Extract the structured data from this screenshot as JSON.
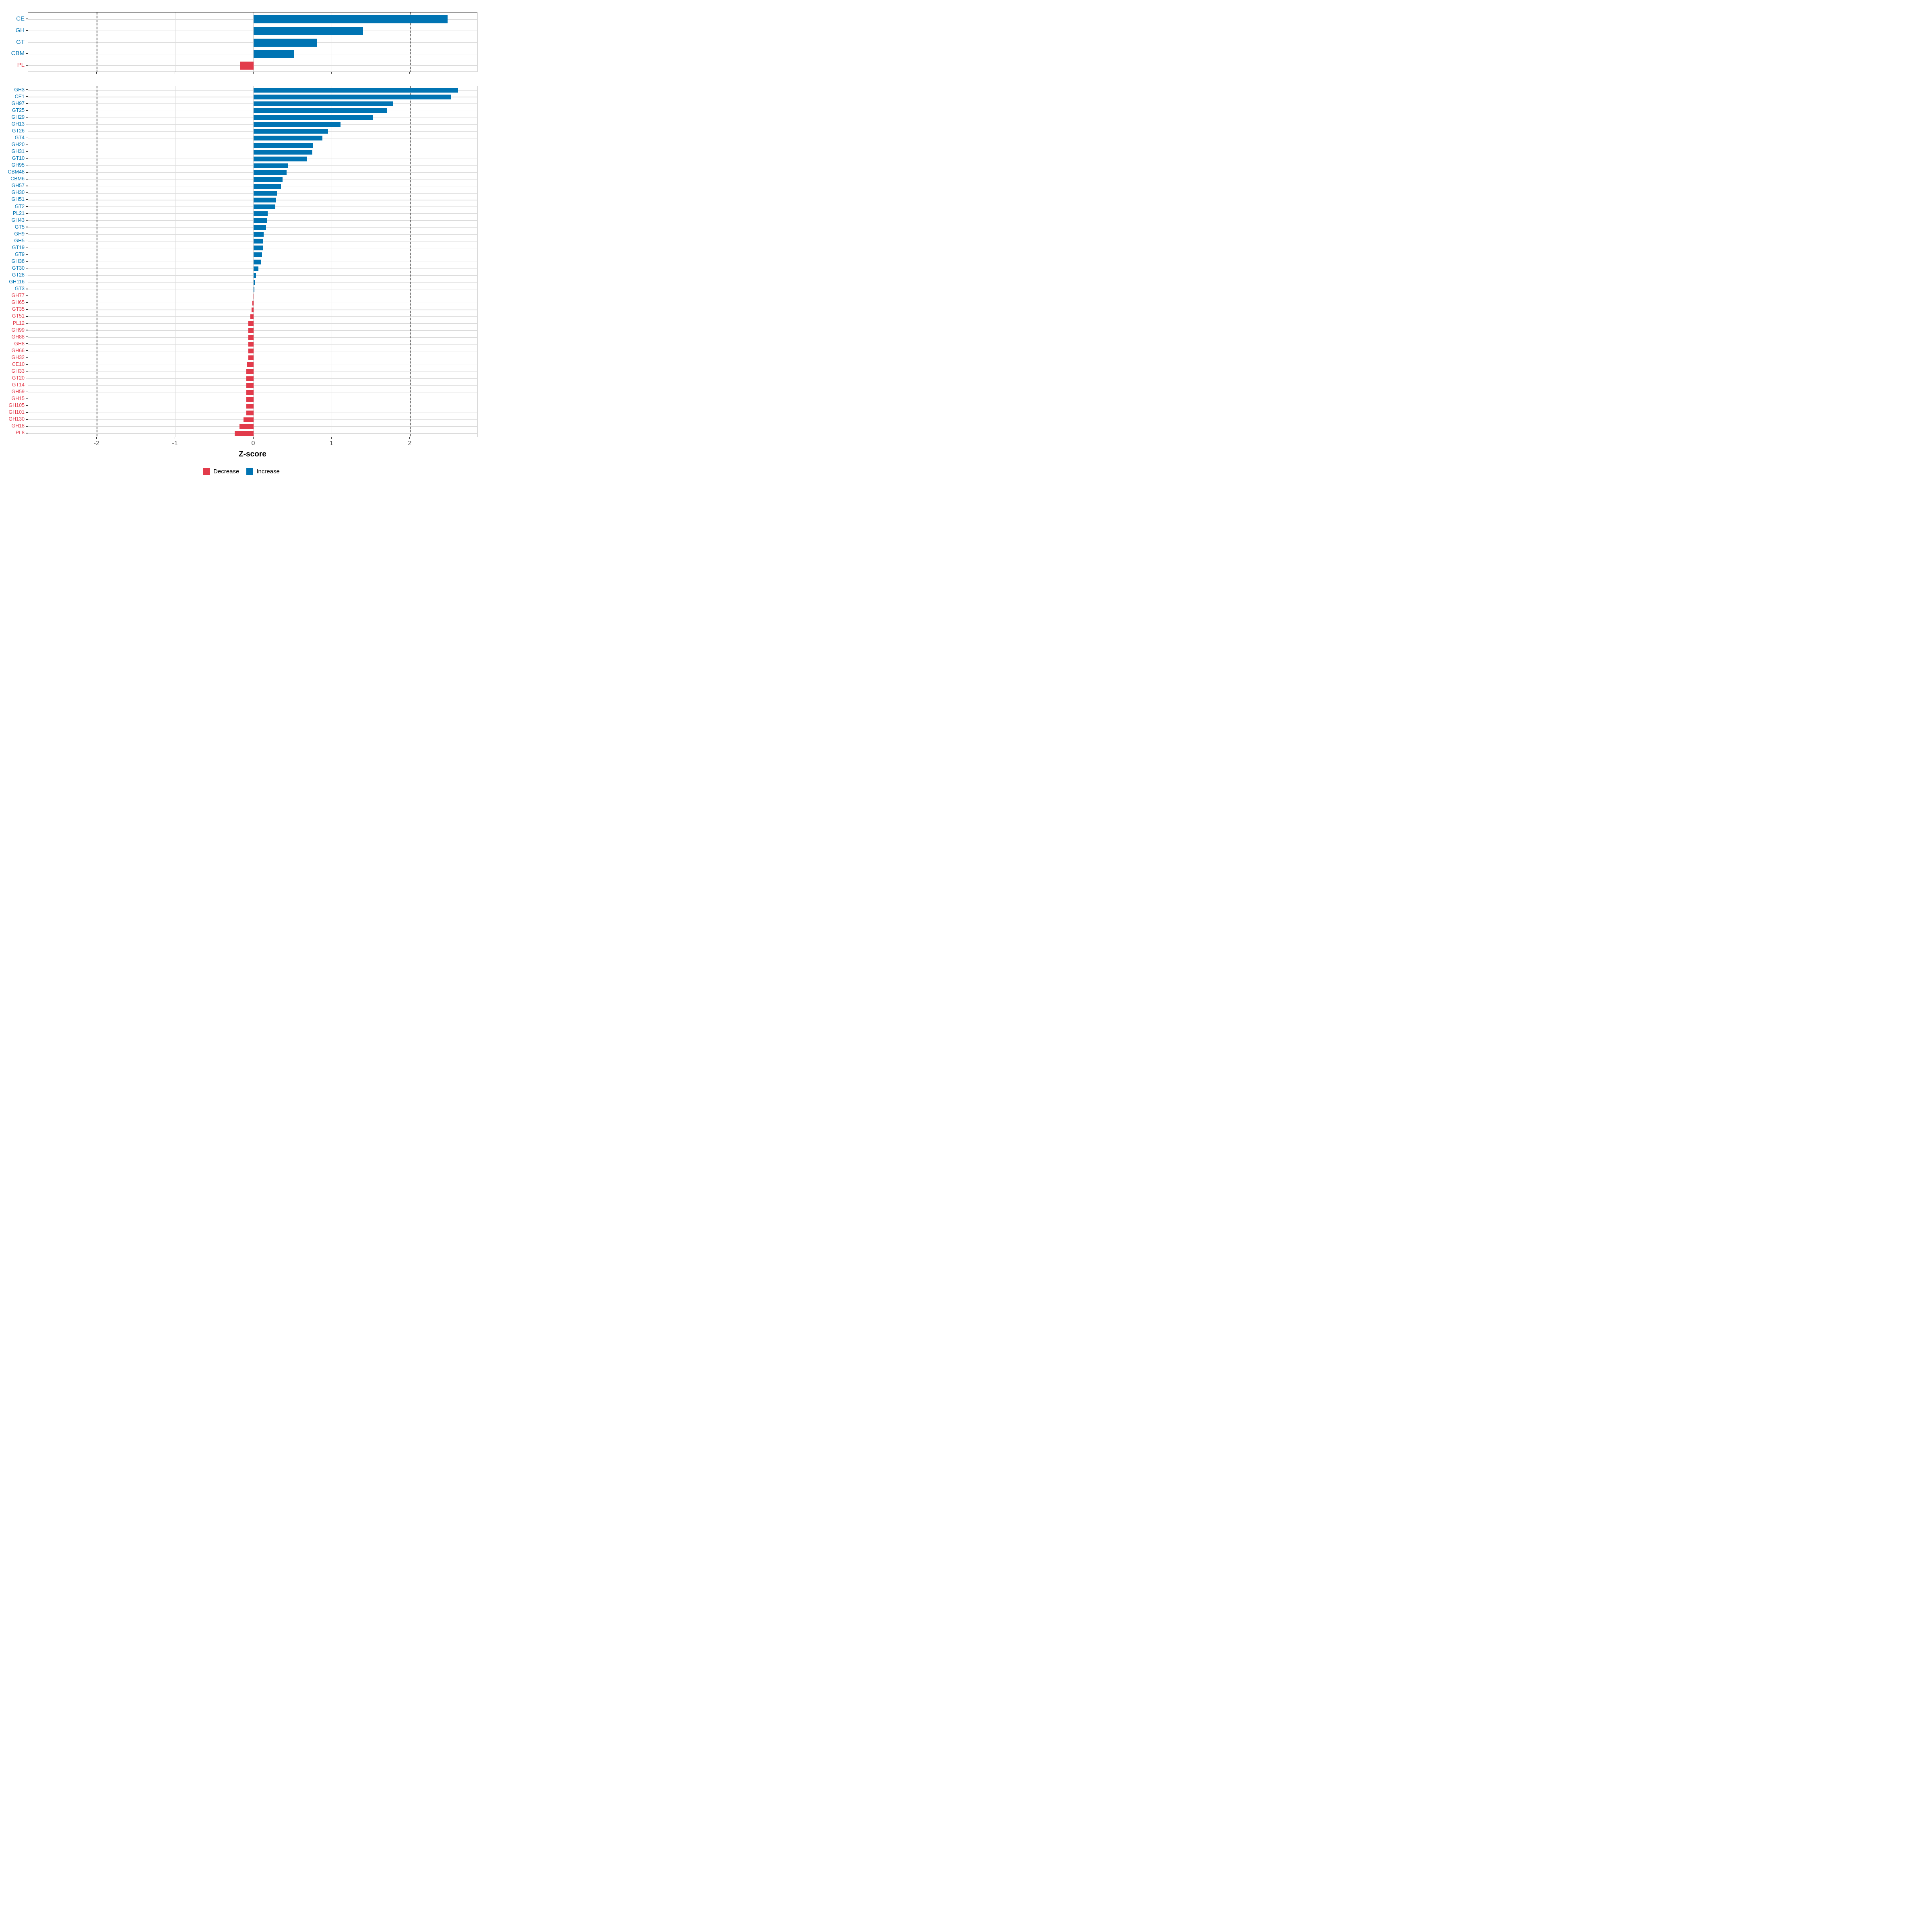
{
  "axis": {
    "xlabel": "Z-score",
    "ticks": [
      "-2",
      "-1",
      "0",
      "1",
      "2"
    ],
    "tick_values": [
      -2,
      -1,
      0,
      1,
      2
    ],
    "dashed_at": [
      -2,
      2
    ]
  },
  "legend": {
    "decrease_label": "Decrease",
    "increase_label": "Increase"
  },
  "colors": {
    "increase": "#0074B3",
    "decrease": "#E23B4B",
    "grid": "#dcdcdc",
    "dashed": "#343434",
    "panel_border": "#1f1f1f",
    "tick_text": "#4d4d4d"
  },
  "chart_data": [
    {
      "type": "bar",
      "orientation": "horizontal",
      "panel": "top",
      "title": "",
      "xlabel": "Z-score",
      "xlim": [
        -2.88,
        2.87
      ],
      "grid": true,
      "categories": [
        "CE",
        "GH",
        "GT",
        "CBM",
        "PL"
      ],
      "values": [
        2.48,
        1.4,
        0.81,
        0.52,
        -0.17
      ],
      "directions": [
        "Increase",
        "Increase",
        "Increase",
        "Increase",
        "Decrease"
      ]
    },
    {
      "type": "bar",
      "orientation": "horizontal",
      "panel": "bottom",
      "title": "",
      "xlabel": "Z-score",
      "xlim": [
        -2.88,
        2.87
      ],
      "grid": true,
      "categories": [
        "GH3",
        "CE1",
        "GH97",
        "GT25",
        "GH29",
        "GH13",
        "GT26",
        "GT4",
        "GH20",
        "GH31",
        "GT10",
        "GH95",
        "CBM48",
        "CBM6",
        "GH57",
        "GH30",
        "GH51",
        "GT2",
        "PL21",
        "GH43",
        "GT5",
        "GH9",
        "GH5",
        "GT19",
        "GT9",
        "GH38",
        "GT30",
        "GT28",
        "GH116",
        "GT3",
        "GH77",
        "GH65",
        "GT35",
        "GT51",
        "PL12",
        "GH99",
        "GH88",
        "GH8",
        "GH66",
        "GH32",
        "CE10",
        "GH33",
        "GT20",
        "GT14",
        "GH59",
        "GH15",
        "GH105",
        "GH101",
        "GH130",
        "GH18",
        "PL8"
      ],
      "values": [
        2.61,
        2.52,
        1.78,
        1.7,
        1.52,
        1.11,
        0.95,
        0.88,
        0.76,
        0.75,
        0.68,
        0.44,
        0.42,
        0.37,
        0.35,
        0.3,
        0.29,
        0.28,
        0.18,
        0.17,
        0.16,
        0.13,
        0.12,
        0.12,
        0.11,
        0.095,
        0.06,
        0.03,
        0.016,
        0.008,
        -0.002,
        -0.014,
        -0.027,
        -0.043,
        -0.067,
        -0.067,
        -0.067,
        -0.067,
        -0.067,
        -0.067,
        -0.087,
        -0.095,
        -0.095,
        -0.095,
        -0.095,
        -0.095,
        -0.095,
        -0.095,
        -0.128,
        -0.18,
        -0.244
      ],
      "directions": [
        "Increase",
        "Increase",
        "Increase",
        "Increase",
        "Increase",
        "Increase",
        "Increase",
        "Increase",
        "Increase",
        "Increase",
        "Increase",
        "Increase",
        "Increase",
        "Increase",
        "Increase",
        "Increase",
        "Increase",
        "Increase",
        "Increase",
        "Increase",
        "Increase",
        "Increase",
        "Increase",
        "Increase",
        "Increase",
        "Increase",
        "Increase",
        "Increase",
        "Increase",
        "Increase",
        "Decrease",
        "Decrease",
        "Decrease",
        "Decrease",
        "Decrease",
        "Decrease",
        "Decrease",
        "Decrease",
        "Decrease",
        "Decrease",
        "Decrease",
        "Decrease",
        "Decrease",
        "Decrease",
        "Decrease",
        "Decrease",
        "Decrease",
        "Decrease",
        "Decrease",
        "Decrease",
        "Decrease"
      ]
    }
  ]
}
